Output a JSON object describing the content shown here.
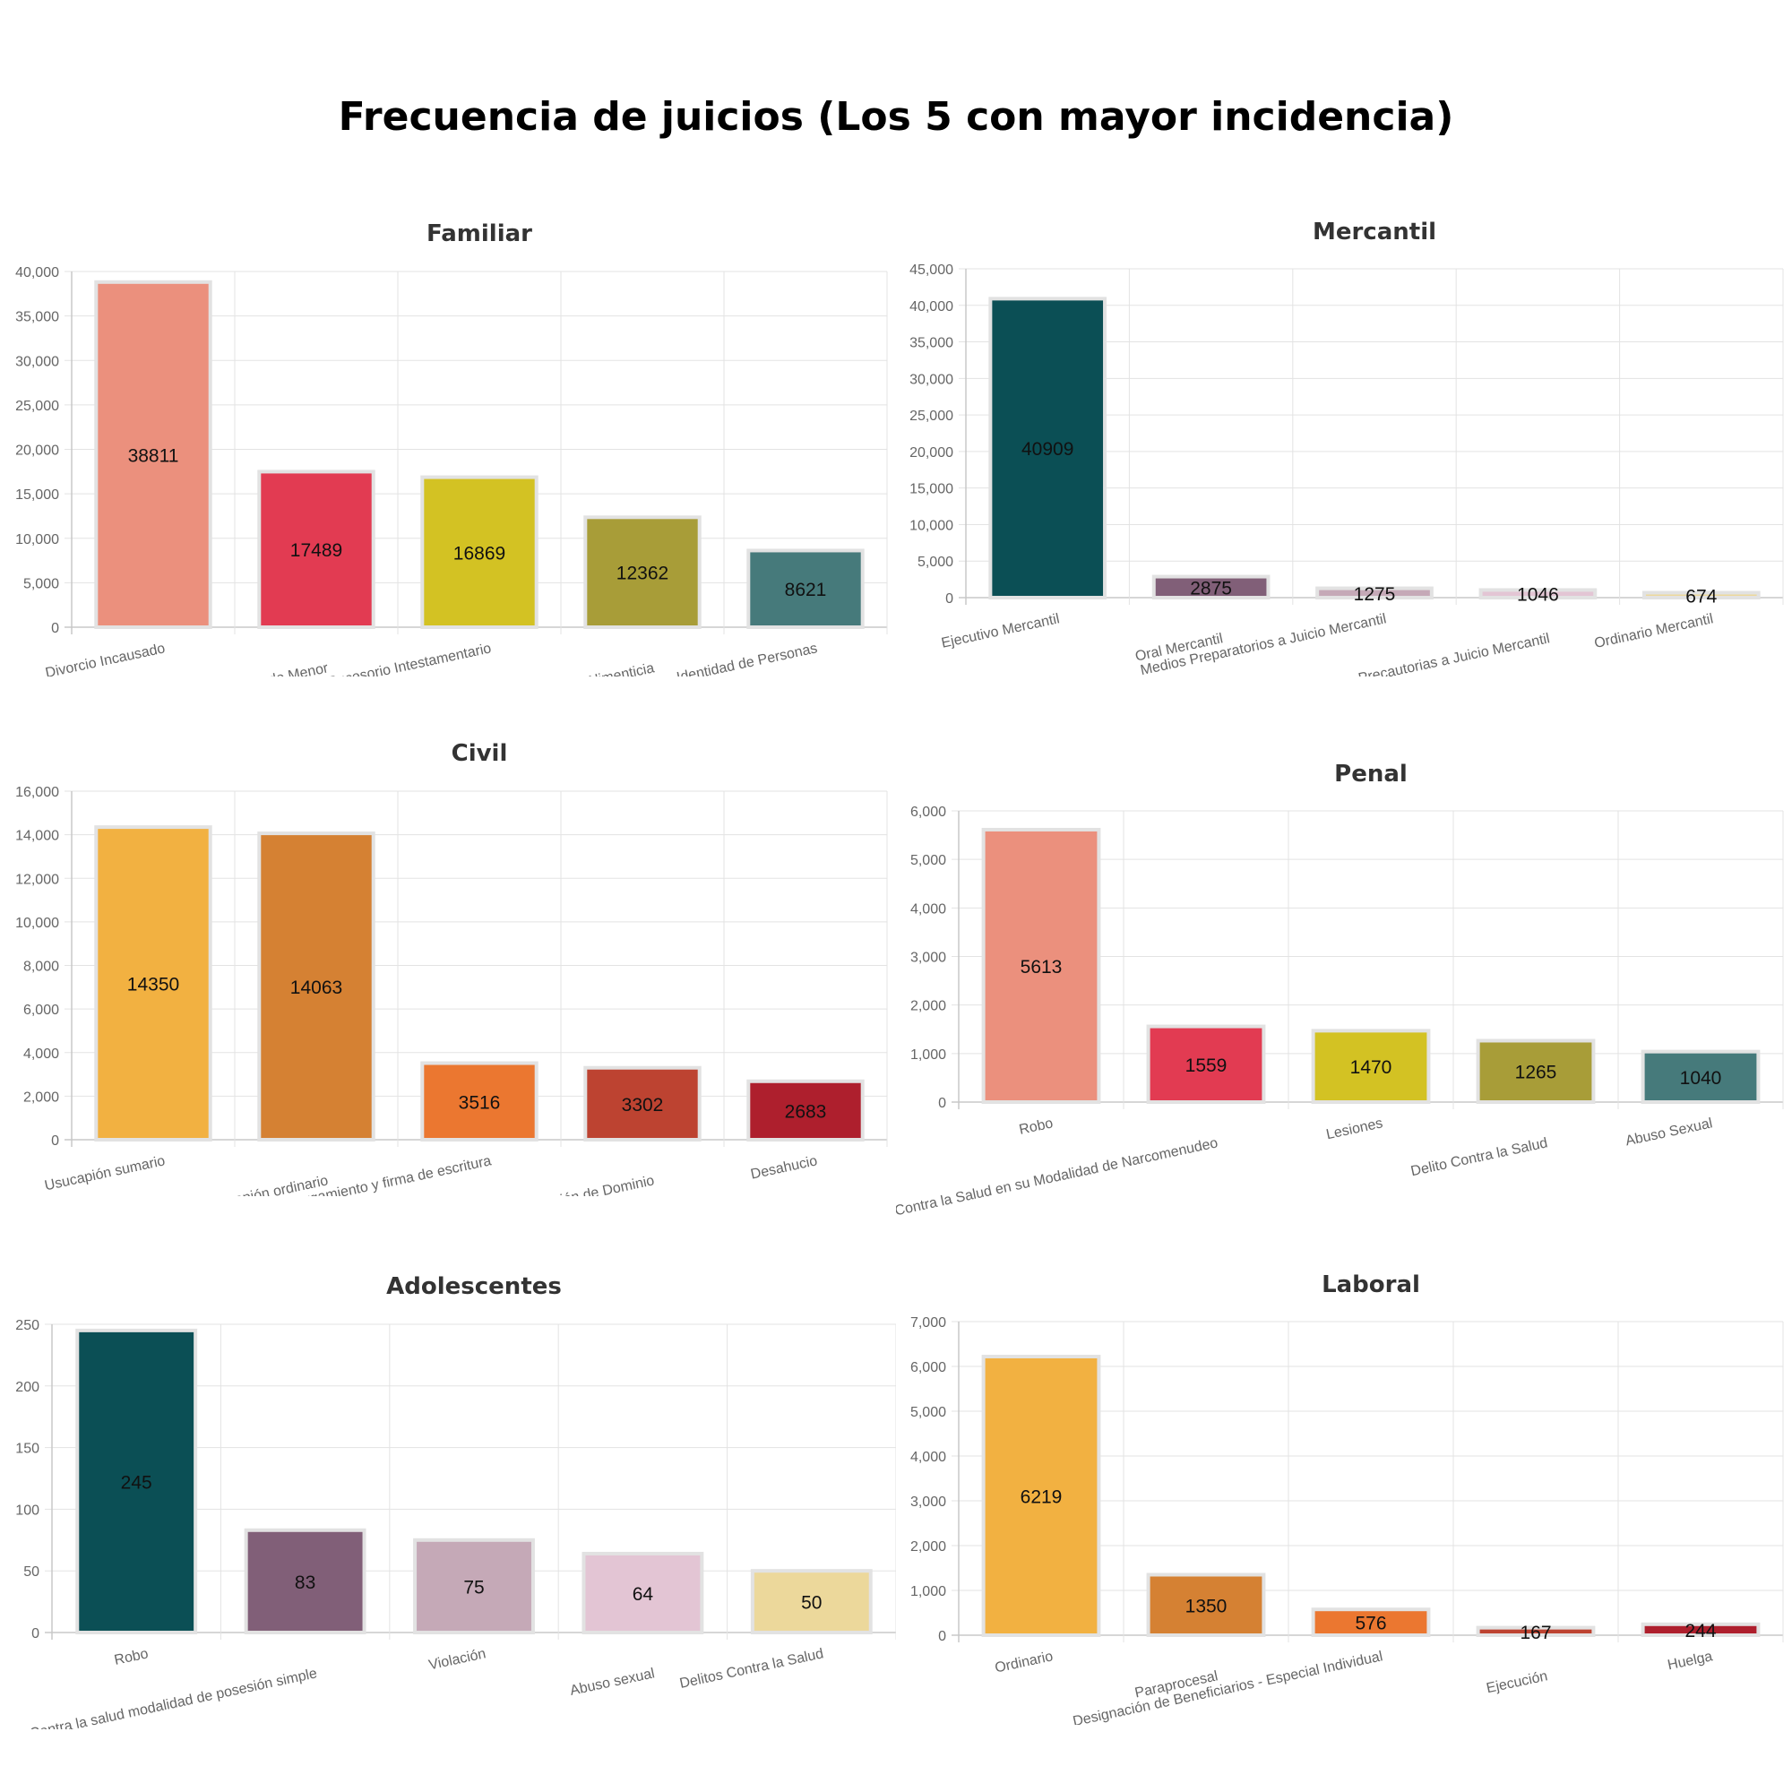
{
  "title": "Frecuencia de juicios (Los 5 con mayor incidencia)",
  "chart_data": [
    {
      "type": "bar",
      "title": "Familiar",
      "categories": [
        "Divorcio Incausado",
        "Guarda y Custodia de Menor",
        "Sucesorio Intestamentario",
        "Pensión Alimenticia",
        "Identidad de Personas"
      ],
      "values": [
        38811,
        17489,
        16869,
        12362,
        8621
      ],
      "colors": [
        "#eb907d",
        "#e23b52",
        "#d3c223",
        "#a89d38",
        "#467a7b"
      ],
      "ylim": [
        0,
        40000
      ],
      "yticks": [
        "0",
        "5,000",
        "10,000",
        "15,000",
        "20,000",
        "25,000",
        "30,000",
        "35,000",
        "40,000"
      ],
      "grid": true
    },
    {
      "type": "bar",
      "title": "Mercantil",
      "categories": [
        "Ejecutivo Mercantil",
        "Oral Mercantil",
        "Medios Preparatorios a Juicio Mercantil",
        "Providencias Precautorias a Juicio Mercantil",
        "Ordinario Mercantil"
      ],
      "values": [
        40909,
        2875,
        1275,
        1046,
        674
      ],
      "colors": [
        "#0b4f55",
        "#815f78",
        "#c5a9b7",
        "#e3c5d4",
        "#ecd89b"
      ],
      "ylim": [
        0,
        45000
      ],
      "yticks": [
        "0",
        "5,000",
        "10,000",
        "15,000",
        "20,000",
        "25,000",
        "30,000",
        "35,000",
        "40,000",
        "45,000"
      ],
      "grid": true
    },
    {
      "type": "bar",
      "title": "Civil",
      "categories": [
        "Usucapión sumario",
        "Usucapión ordinario",
        "Otorgamiento y firma de escritura",
        "Información de Dominio",
        "Desahucio"
      ],
      "values": [
        14350,
        14063,
        3516,
        3302,
        2683
      ],
      "colors": [
        "#f2b141",
        "#d58133",
        "#eb7730",
        "#bd4331",
        "#ae1f2d"
      ],
      "ylim": [
        0,
        16000
      ],
      "yticks": [
        "0",
        "2,000",
        "4,000",
        "6,000",
        "8,000",
        "10,000",
        "12,000",
        "14,000",
        "16,000"
      ],
      "grid": true
    },
    {
      "type": "bar",
      "title": "Penal",
      "categories": [
        "Robo",
        "Contra la Salud en su Modalidad de Narcomenudeo",
        "Lesiones",
        "Delito Contra la Salud",
        "Abuso Sexual"
      ],
      "values": [
        5613,
        1559,
        1470,
        1265,
        1040
      ],
      "colors": [
        "#eb907d",
        "#e23b52",
        "#d3c223",
        "#a89d38",
        "#467a7b"
      ],
      "ylim": [
        0,
        6000
      ],
      "yticks": [
        "0",
        "1,000",
        "2,000",
        "3,000",
        "4,000",
        "5,000",
        "6,000"
      ],
      "grid": true
    },
    {
      "type": "bar",
      "title": "Adolescentes",
      "categories": [
        "Robo",
        "Contra la salud modalidad de posesión simple",
        "Violación",
        "Abuso sexual",
        "Delitos Contra la Salud"
      ],
      "values": [
        245,
        83,
        75,
        64,
        50
      ],
      "colors": [
        "#0b4f55",
        "#815f78",
        "#c5a9b7",
        "#e3c5d4",
        "#ecd89b"
      ],
      "ylim": [
        0,
        250
      ],
      "yticks": [
        "0",
        "50",
        "100",
        "150",
        "200",
        "250"
      ],
      "grid": true
    },
    {
      "type": "bar",
      "title": "Laboral",
      "categories": [
        "Ordinario",
        "Paraprocesal",
        "Designación de Beneficiarios - Especial Individual",
        "Ejecución",
        "Huelga"
      ],
      "values": [
        6219,
        1350,
        576,
        167,
        244
      ],
      "colors": [
        "#f2b141",
        "#d58133",
        "#eb7730",
        "#bd4331",
        "#ae1f2d"
      ],
      "ylim": [
        0,
        7000
      ],
      "yticks": [
        "0",
        "1,000",
        "2,000",
        "3,000",
        "4,000",
        "5,000",
        "6,000",
        "7,000"
      ],
      "grid": true
    }
  ]
}
